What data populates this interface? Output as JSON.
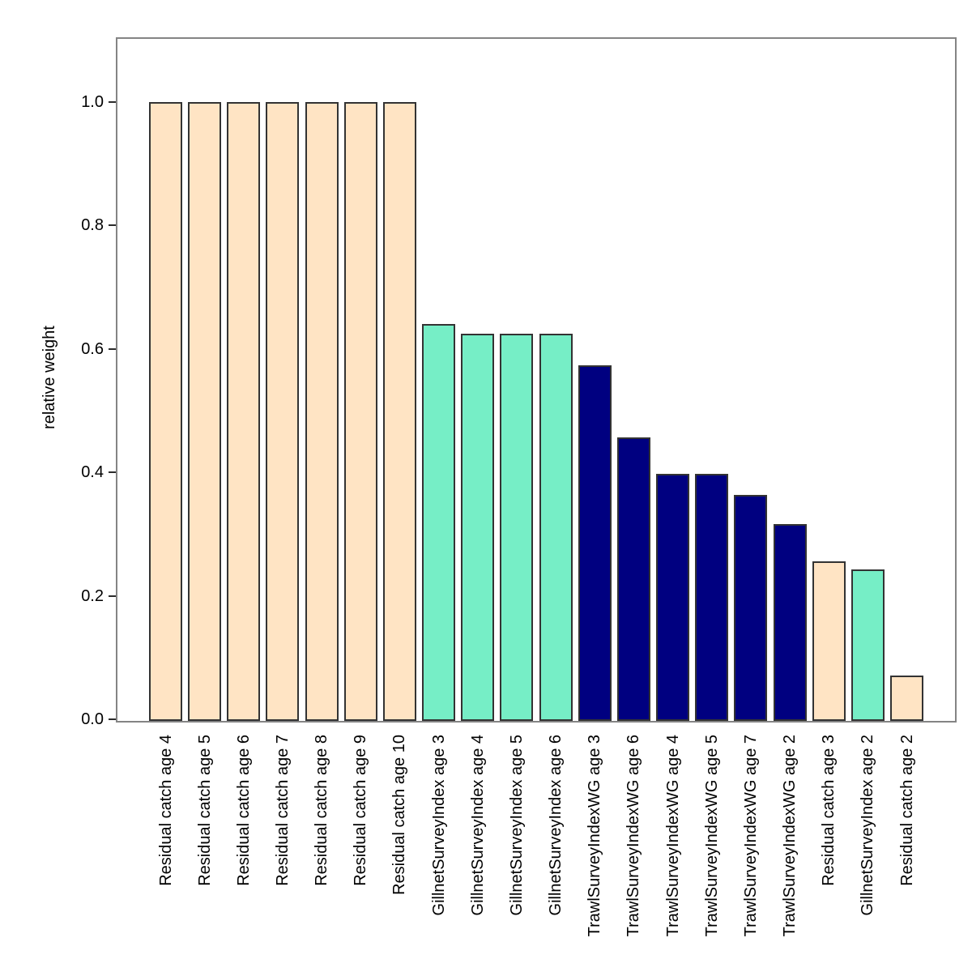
{
  "figure": {
    "background_color": "#FFFFFF",
    "box_color": "#848484",
    "tick_color": "#2B2B2B",
    "text_color": "#000000",
    "bar_border_color": "#333333"
  },
  "chart_data": {
    "type": "bar",
    "title": "",
    "xlabel": "",
    "ylabel": "relative weight",
    "ylim": [
      0,
      1.1
    ],
    "yticks": [
      0.0,
      0.2,
      0.4,
      0.6,
      0.8,
      1.0
    ],
    "grid": false,
    "legend_position": "none",
    "groups": {
      "Residual catch": "#FFE4C4",
      "GillnetSurveyIndex": "#76EEC6",
      "TrawlSurveyIndexWG": "#000080"
    },
    "categories": [
      "Residual catch age 4",
      "Residual catch age 5",
      "Residual catch age 6",
      "Residual catch age 7",
      "Residual catch age 8",
      "Residual catch age 9",
      "Residual catch age 10",
      "GillnetSurveyIndex age 3",
      "GillnetSurveyIndex age 4",
      "GillnetSurveyIndex age 5",
      "GillnetSurveyIndex age 6",
      "TrawlSurveyIndexWG age 3",
      "TrawlSurveyIndexWG age 6",
      "TrawlSurveyIndexWG age 4",
      "TrawlSurveyIndexWG age 5",
      "TrawlSurveyIndexWG age 7",
      "TrawlSurveyIndexWG age 2",
      "Residual catch age 3",
      "GillnetSurveyIndex age 2",
      "Residual catch age 2"
    ],
    "series_group": [
      "Residual catch",
      "Residual catch",
      "Residual catch",
      "Residual catch",
      "Residual catch",
      "Residual catch",
      "Residual catch",
      "GillnetSurveyIndex",
      "GillnetSurveyIndex",
      "GillnetSurveyIndex",
      "GillnetSurveyIndex",
      "TrawlSurveyIndexWG",
      "TrawlSurveyIndexWG",
      "TrawlSurveyIndexWG",
      "TrawlSurveyIndexWG",
      "TrawlSurveyIndexWG",
      "TrawlSurveyIndexWG",
      "Residual catch",
      "GillnetSurveyIndex",
      "Residual catch"
    ],
    "values": [
      1.0,
      1.0,
      1.0,
      1.0,
      1.0,
      1.0,
      1.0,
      0.64,
      0.625,
      0.625,
      0.625,
      0.573,
      0.457,
      0.398,
      0.398,
      0.363,
      0.316,
      0.256,
      0.243,
      0.071
    ]
  }
}
